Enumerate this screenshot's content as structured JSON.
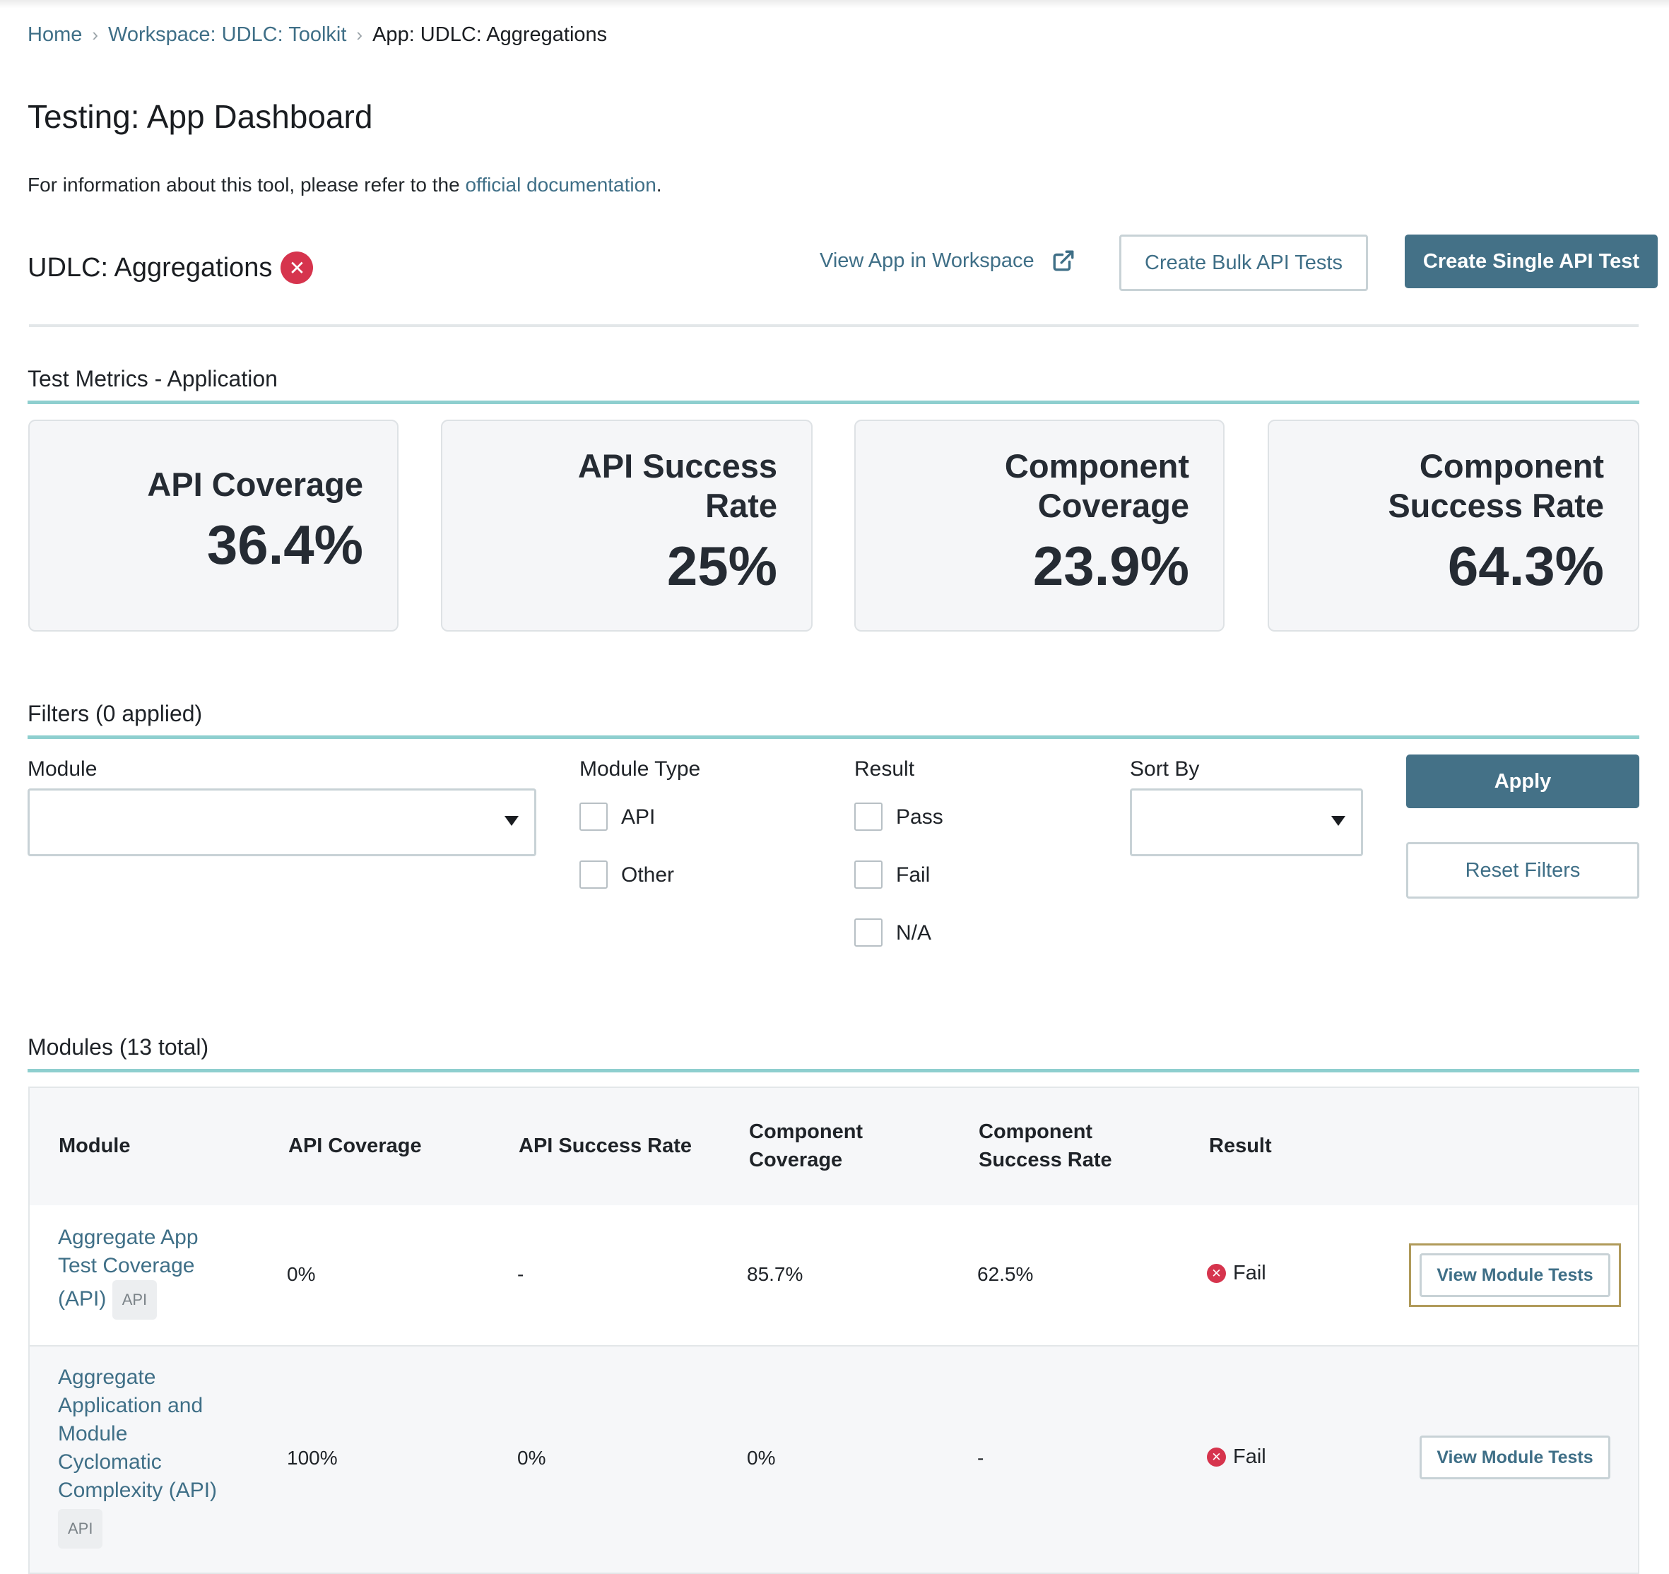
{
  "breadcrumb": {
    "home": "Home",
    "workspace": "Workspace: UDLC: Toolkit",
    "current": "App: UDLC: Aggregations"
  },
  "page": {
    "title": "Testing: App Dashboard",
    "info_prefix": "For information about this tool, please refer to the ",
    "info_link": "official documentation",
    "info_suffix": "."
  },
  "app": {
    "name": "UDLC: Aggregations",
    "status_icon": "error-x-icon",
    "view_in_workspace": "View App in Workspace",
    "create_bulk": "Create Bulk API Tests",
    "create_single": "Create Single API Test"
  },
  "metrics": {
    "title": "Test Metrics - Application",
    "cards": [
      {
        "label_lines": [
          "API Coverage"
        ],
        "value": "36.4%"
      },
      {
        "label_lines": [
          "API Success",
          "Rate"
        ],
        "value": "25%"
      },
      {
        "label_lines": [
          "Component",
          "Coverage"
        ],
        "value": "23.9%"
      },
      {
        "label_lines": [
          "Component",
          "Success Rate"
        ],
        "value": "64.3%"
      }
    ]
  },
  "filters": {
    "title": "Filters (0 applied)",
    "module_label": "Module",
    "module_value": "",
    "module_type_label": "Module Type",
    "module_type_options": [
      "API",
      "Other"
    ],
    "result_label": "Result",
    "result_options": [
      "Pass",
      "Fail",
      "N/A"
    ],
    "sort_label": "Sort By",
    "sort_value": "",
    "apply": "Apply",
    "reset": "Reset Filters"
  },
  "modules": {
    "title": "Modules (13 total)",
    "headers": {
      "module": "Module",
      "api_coverage": "API Coverage",
      "api_success": "API Success Rate",
      "comp_coverage_lines": [
        "Component",
        "Coverage"
      ],
      "comp_success_lines": [
        "Component",
        "Success Rate"
      ],
      "result": "Result"
    },
    "rows": [
      {
        "name_lines": [
          "Aggregate App",
          "Test Coverage",
          "(API)"
        ],
        "tag": "API",
        "api_coverage": "0%",
        "api_success": "-",
        "comp_coverage": "85.7%",
        "comp_success": "62.5%",
        "result": "Fail",
        "action": "View Module Tests"
      },
      {
        "name_lines": [
          "Aggregate",
          "Application and",
          "Module",
          "Cyclomatic",
          "Complexity (API)"
        ],
        "tag": "API",
        "api_coverage": "100%",
        "api_success": "0%",
        "comp_coverage": "0%",
        "comp_success": "-",
        "result": "Fail",
        "action": "View Module Tests"
      }
    ]
  },
  "colors": {
    "link": "#3f6f87",
    "primary_button": "#447187",
    "section_underline": "#8ecfcf",
    "error": "#d6344d",
    "card_bg": "#f5f6f8"
  }
}
